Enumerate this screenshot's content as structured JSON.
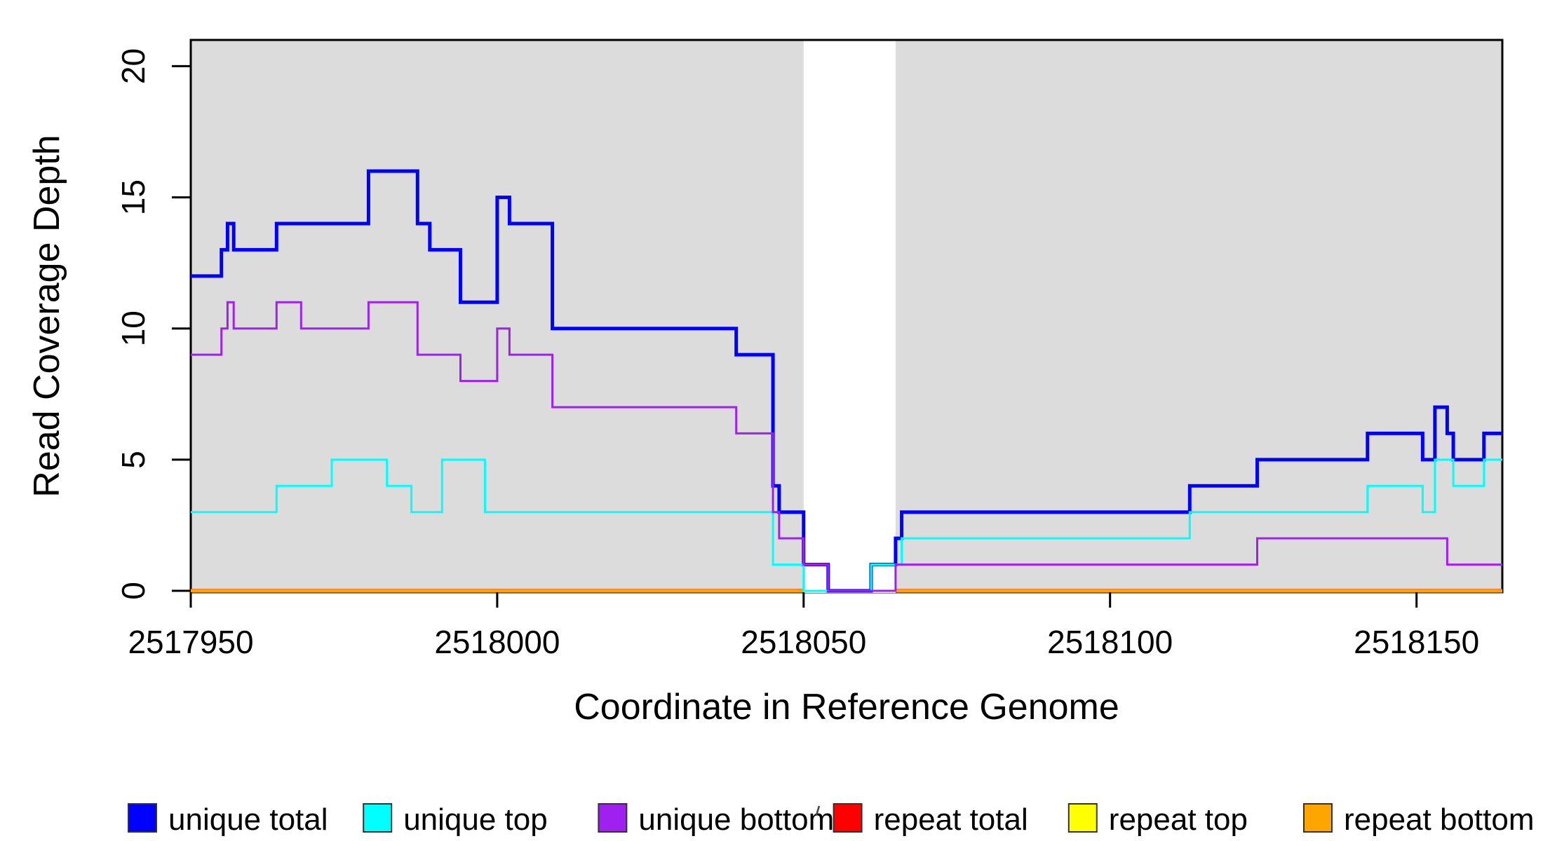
{
  "page": {
    "background": "#FFFFFF"
  },
  "chart_data": {
    "type": "line",
    "variant": "step",
    "title": "",
    "xlabel": "Coordinate in Reference Genome",
    "ylabel": "Read Coverage Depth",
    "xlim": [
      2517950,
      2518164
    ],
    "ylim": [
      0,
      21
    ],
    "x_ticks": [
      2517950,
      2518000,
      2518050,
      2518100,
      2518150
    ],
    "y_ticks": [
      0,
      5,
      10,
      15,
      20
    ],
    "grid": false,
    "plot_background": "#DCDCDC",
    "axis_color": "#000000",
    "highlight_band": {
      "x_start": 2518050,
      "x_end": 2518065,
      "color": "#FFFFFF"
    },
    "legend_position": "bottom",
    "series": [
      {
        "name": "unique total",
        "color": "#0000FF",
        "stroke_width": 5,
        "masked_by_band": false,
        "steps": [
          [
            2517950,
            12
          ],
          [
            2517955,
            13
          ],
          [
            2517956,
            14
          ],
          [
            2517957,
            13
          ],
          [
            2517964,
            14
          ],
          [
            2517979,
            16
          ],
          [
            2517987,
            14
          ],
          [
            2517989,
            13
          ],
          [
            2517994,
            11
          ],
          [
            2518000,
            15
          ],
          [
            2518002,
            14
          ],
          [
            2518009,
            10
          ],
          [
            2518039,
            9
          ],
          [
            2518045,
            4
          ],
          [
            2518046,
            3
          ],
          [
            2518050,
            1
          ],
          [
            2518054,
            0
          ],
          [
            2518061,
            1
          ],
          [
            2518065,
            2
          ],
          [
            2518066,
            3
          ],
          [
            2518113,
            4
          ],
          [
            2518124,
            5
          ],
          [
            2518142,
            6
          ],
          [
            2518151,
            5
          ],
          [
            2518153,
            7
          ],
          [
            2518155,
            6
          ],
          [
            2518156,
            5
          ],
          [
            2518161,
            6
          ],
          [
            2518164,
            6
          ]
        ]
      },
      {
        "name": "unique top",
        "color": "#00FFFF",
        "stroke_width": 3,
        "masked_by_band": false,
        "steps": [
          [
            2517950,
            3
          ],
          [
            2517964,
            4
          ],
          [
            2517973,
            5
          ],
          [
            2517982,
            4
          ],
          [
            2517986,
            3
          ],
          [
            2517991,
            5
          ],
          [
            2517998,
            3
          ],
          [
            2518045,
            1
          ],
          [
            2518050,
            0
          ],
          [
            2518061,
            1
          ],
          [
            2518066,
            2
          ],
          [
            2518113,
            3
          ],
          [
            2518142,
            4
          ],
          [
            2518151,
            3
          ],
          [
            2518153,
            5
          ],
          [
            2518156,
            4
          ],
          [
            2518161,
            5
          ],
          [
            2518164,
            5
          ]
        ]
      },
      {
        "name": "unique bottom",
        "color": "#A020F0",
        "stroke_width": 3,
        "masked_by_band": false,
        "steps": [
          [
            2517950,
            9
          ],
          [
            2517955,
            10
          ],
          [
            2517956,
            11
          ],
          [
            2517957,
            10
          ],
          [
            2517964,
            11
          ],
          [
            2517968,
            10
          ],
          [
            2517979,
            11
          ],
          [
            2517987,
            9
          ],
          [
            2517994,
            8
          ],
          [
            2518000,
            10
          ],
          [
            2518002,
            9
          ],
          [
            2518009,
            7
          ],
          [
            2518039,
            6
          ],
          [
            2518045,
            3
          ],
          [
            2518046,
            2
          ],
          [
            2518050,
            1
          ],
          [
            2518054,
            0
          ],
          [
            2518065,
            1
          ],
          [
            2518124,
            2
          ],
          [
            2518155,
            1
          ],
          [
            2518164,
            1
          ]
        ]
      },
      {
        "name": "repeat total",
        "color": "#FF0000",
        "stroke_width": 5.5,
        "masked_by_band": true,
        "steps": [
          [
            2517950,
            0
          ],
          [
            2518164,
            0
          ]
        ]
      },
      {
        "name": "repeat top",
        "color": "#FFFF00",
        "stroke_width": 4.5,
        "masked_by_band": true,
        "steps": [
          [
            2517950,
            0
          ],
          [
            2518164,
            0
          ]
        ]
      },
      {
        "name": "repeat bottom",
        "color": "#FFA500",
        "stroke_width": 4,
        "masked_by_band": true,
        "steps": [
          [
            2517950,
            0
          ],
          [
            2518164,
            0
          ]
        ]
      }
    ]
  },
  "legend": {
    "entries": [
      {
        "label": "unique total",
        "color": "#0000FF"
      },
      {
        "label": "unique top",
        "color": "#00FFFF"
      },
      {
        "label": "unique bottom",
        "color": "#A020F0"
      },
      {
        "label": "repeat total",
        "color": "#FF0000"
      },
      {
        "label": "repeat top",
        "color": "#FFFF00"
      },
      {
        "label": "repeat bottom",
        "color": "#FFA500"
      }
    ]
  }
}
